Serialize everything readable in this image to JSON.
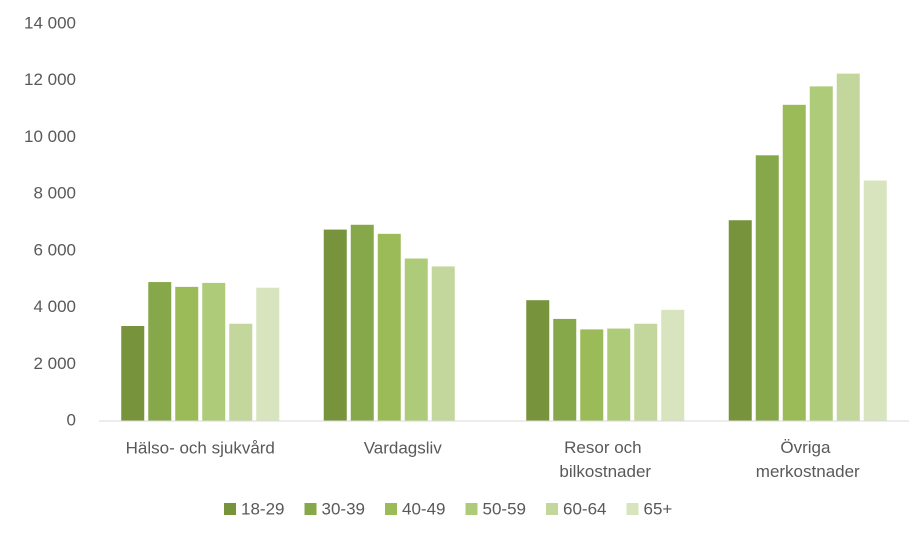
{
  "chart_data": {
    "type": "bar",
    "categories": [
      "Hälso- och sjukvård",
      "Vardagsliv",
      "Resor och\nbilkostnader",
      "Övriga\nmerkostnader"
    ],
    "series": [
      {
        "name": "18-29",
        "color": "#77933c",
        "values": [
          3350,
          6750,
          4260,
          7080
        ]
      },
      {
        "name": "30-39",
        "color": "#86a84a",
        "values": [
          4900,
          6920,
          3600,
          9370
        ]
      },
      {
        "name": "40-49",
        "color": "#9bbb59",
        "values": [
          4730,
          6600,
          3230,
          11150
        ]
      },
      {
        "name": "50-59",
        "color": "#aecb7a",
        "values": [
          4870,
          5730,
          3260,
          11800
        ]
      },
      {
        "name": "60-64",
        "color": "#c3d69b",
        "values": [
          3430,
          5450,
          3430,
          12250
        ]
      },
      {
        "name": "65+",
        "color": "#d7e4bd",
        "values": [
          4700,
          null,
          3920,
          8480
        ]
      }
    ],
    "ylim": [
      0,
      14000
    ],
    "yticks": [
      0,
      {
        "value": 2000,
        "label": "2 000"
      },
      {
        "value": 4000,
        "label": "4 000"
      },
      {
        "value": 6000,
        "label": "6 000"
      },
      {
        "value": 8000,
        "label": "8 000"
      },
      {
        "value": 10000,
        "label": "10 000"
      },
      {
        "value": 12000,
        "label": "12 000"
      },
      {
        "value": 14000,
        "label": "14 000"
      }
    ],
    "grid": false,
    "legend": "bottom"
  }
}
